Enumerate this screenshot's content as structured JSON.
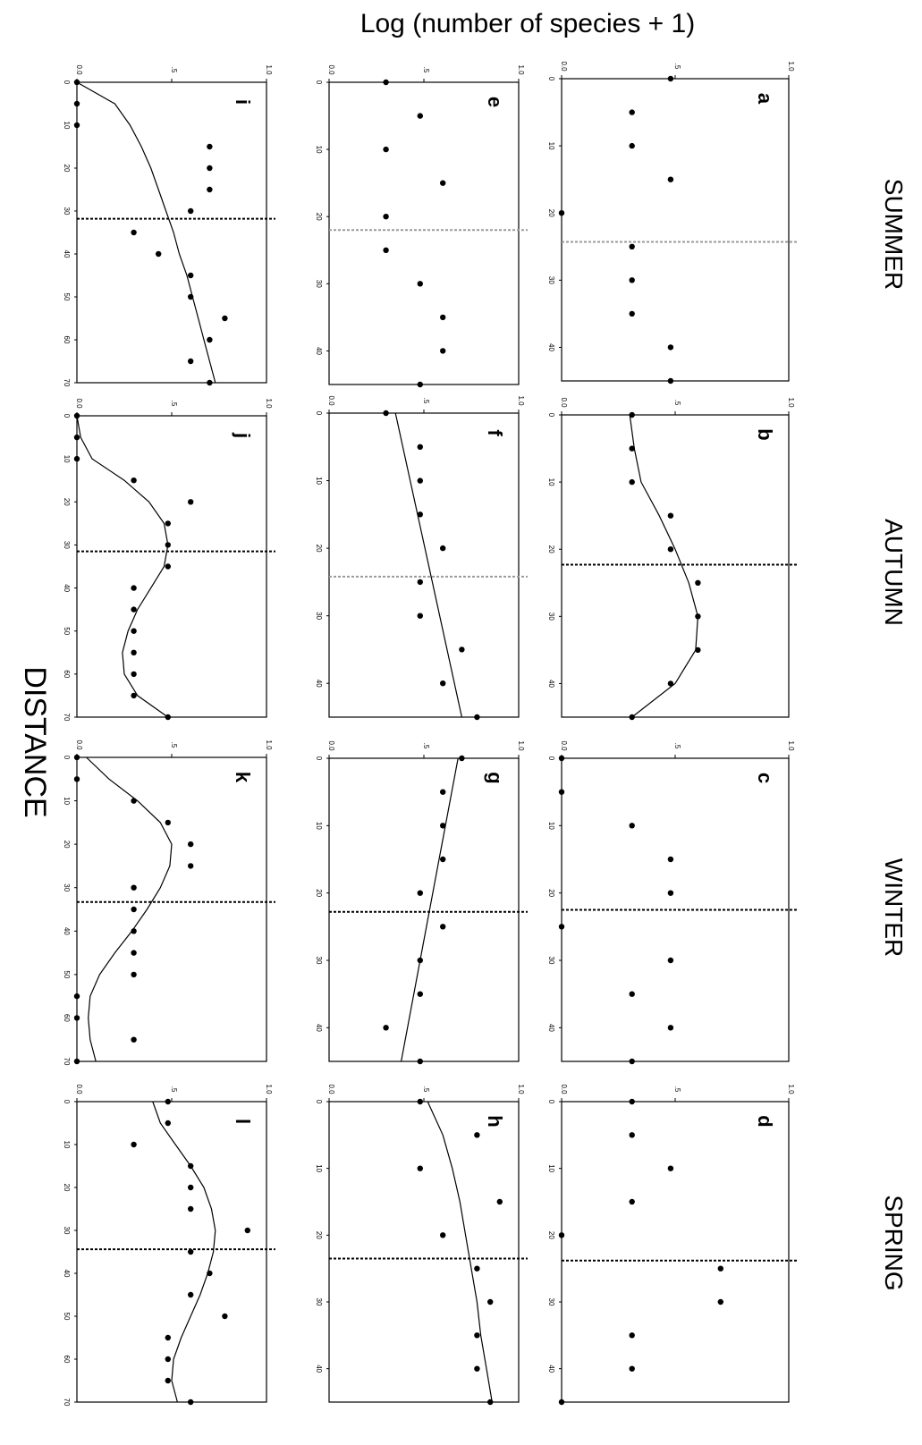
{
  "figure": {
    "ylabel": "Log (number of species + 1)",
    "xlabel": "DISTANCE",
    "seasons": [
      "SUMMER",
      "AUTUMN",
      "WINTER",
      "SPRING"
    ]
  },
  "chart_data": [
    {
      "type": "scatter",
      "panel": "a",
      "season": "SUMMER",
      "ylim": [
        0,
        1
      ],
      "yticks": [
        "0.0",
        ".5",
        "1.0"
      ],
      "xlim": [
        0,
        45
      ],
      "xticks": [
        "0",
        "10",
        "20",
        "30",
        "40"
      ],
      "threshold_x": 24.3,
      "threshold_style": "gray",
      "points": [
        [
          0,
          0.48
        ],
        [
          5,
          0.31
        ],
        [
          10,
          0.31
        ],
        [
          15,
          0.48
        ],
        [
          20,
          0
        ],
        [
          25,
          0.31
        ],
        [
          30,
          0.31
        ],
        [
          35,
          0.31
        ],
        [
          40,
          0.48
        ],
        [
          45,
          0.48
        ]
      ],
      "fit": []
    },
    {
      "type": "scatter",
      "panel": "b",
      "season": "AUTUMN",
      "ylim": [
        0,
        1
      ],
      "yticks": [
        "0.0",
        ".5",
        "1.0"
      ],
      "xlim": [
        0,
        45
      ],
      "xticks": [
        "0",
        "10",
        "20",
        "30",
        "40"
      ],
      "threshold_x": 22.3,
      "threshold_style": "black",
      "points": [
        [
          0,
          0.31
        ],
        [
          5,
          0.31
        ],
        [
          10,
          0.31
        ],
        [
          15,
          0.48
        ],
        [
          20,
          0.48
        ],
        [
          25,
          0.6
        ],
        [
          30,
          0.6
        ],
        [
          35,
          0.6
        ],
        [
          40,
          0.48
        ],
        [
          45,
          0.31
        ]
      ],
      "fit": [
        [
          0,
          0.3
        ],
        [
          5,
          0.32
        ],
        [
          10,
          0.35
        ],
        [
          15,
          0.43
        ],
        [
          20,
          0.5
        ],
        [
          25,
          0.56
        ],
        [
          30,
          0.6
        ],
        [
          35,
          0.59
        ],
        [
          40,
          0.5
        ],
        [
          45,
          0.31
        ]
      ]
    },
    {
      "type": "scatter",
      "panel": "c",
      "season": "WINTER",
      "ylim": [
        0,
        1
      ],
      "yticks": [
        "0.0",
        ".5",
        "1.0"
      ],
      "xlim": [
        0,
        45
      ],
      "xticks": [
        "0",
        "10",
        "20",
        "30",
        "40"
      ],
      "threshold_x": 22.5,
      "threshold_style": "black",
      "points": [
        [
          0,
          0
        ],
        [
          5,
          0
        ],
        [
          10,
          0.31
        ],
        [
          15,
          0.48
        ],
        [
          20,
          0.48
        ],
        [
          25,
          0
        ],
        [
          30,
          0.48
        ],
        [
          35,
          0.31
        ],
        [
          40,
          0.48
        ],
        [
          45,
          0.31
        ]
      ],
      "fit": []
    },
    {
      "type": "scatter",
      "panel": "d",
      "season": "SPRING",
      "ylim": [
        0,
        1
      ],
      "yticks": [
        "0.0",
        ".5",
        "1.0"
      ],
      "xlim": [
        0,
        45
      ],
      "xticks": [
        "0",
        "10",
        "20",
        "30",
        "40"
      ],
      "threshold_x": 23.8,
      "threshold_style": "black",
      "points": [
        [
          0,
          0.31
        ],
        [
          5,
          0.31
        ],
        [
          10,
          0.48
        ],
        [
          15,
          0.31
        ],
        [
          20,
          0
        ],
        [
          25,
          0.7
        ],
        [
          30,
          0.7
        ],
        [
          35,
          0.31
        ],
        [
          40,
          0.31
        ],
        [
          45,
          0
        ]
      ],
      "fit": []
    },
    {
      "type": "scatter",
      "panel": "e",
      "season": "SUMMER",
      "ylim": [
        0,
        1
      ],
      "yticks": [
        "0.0",
        ".5",
        "1.0"
      ],
      "xlim": [
        0,
        45
      ],
      "xticks": [
        "0",
        "10",
        "20",
        "30",
        "40"
      ],
      "threshold_x": 22,
      "threshold_style": "gray",
      "points": [
        [
          0,
          0.3
        ],
        [
          5,
          0.48
        ],
        [
          10,
          0.3
        ],
        [
          15,
          0.6
        ],
        [
          20,
          0.3
        ],
        [
          25,
          0.3
        ],
        [
          30,
          0.48
        ],
        [
          35,
          0.6
        ],
        [
          40,
          0.6
        ],
        [
          45,
          0.48
        ]
      ],
      "fit": []
    },
    {
      "type": "scatter",
      "panel": "f",
      "season": "AUTUMN",
      "ylim": [
        0,
        1
      ],
      "yticks": [
        "0.0",
        ".5",
        "1.0"
      ],
      "xlim": [
        0,
        45
      ],
      "xticks": [
        "0",
        "10",
        "20",
        "30",
        "40"
      ],
      "threshold_x": 24.2,
      "threshold_style": "gray",
      "points": [
        [
          0,
          0.3
        ],
        [
          5,
          0.48
        ],
        [
          10,
          0.48
        ],
        [
          15,
          0.48
        ],
        [
          20,
          0.6
        ],
        [
          25,
          0.48
        ],
        [
          30,
          0.48
        ],
        [
          35,
          0.7
        ],
        [
          40,
          0.6
        ],
        [
          45,
          0.78
        ]
      ],
      "fit": [
        [
          0,
          0.35
        ],
        [
          45,
          0.7
        ]
      ]
    },
    {
      "type": "scatter",
      "panel": "g",
      "season": "WINTER",
      "ylim": [
        0,
        1
      ],
      "yticks": [
        "0.0",
        ".5",
        "1.0"
      ],
      "xlim": [
        0,
        45
      ],
      "xticks": [
        "0",
        "10",
        "20",
        "30",
        "40"
      ],
      "threshold_x": 22.8,
      "threshold_style": "black",
      "points": [
        [
          0,
          0.7
        ],
        [
          5,
          0.6
        ],
        [
          10,
          0.6
        ],
        [
          15,
          0.6
        ],
        [
          20,
          0.48
        ],
        [
          25,
          0.6
        ],
        [
          30,
          0.48
        ],
        [
          35,
          0.48
        ],
        [
          40,
          0.3
        ],
        [
          45,
          0.48
        ]
      ],
      "fit": [
        [
          0,
          0.68
        ],
        [
          45,
          0.38
        ]
      ]
    },
    {
      "type": "scatter",
      "panel": "h",
      "season": "SPRING",
      "ylim": [
        0,
        1
      ],
      "yticks": [
        "0.0",
        ".5",
        "1.0"
      ],
      "xlim": [
        0,
        45
      ],
      "xticks": [
        "0",
        "10",
        "20",
        "30",
        "40"
      ],
      "threshold_x": 23.5,
      "threshold_style": "black",
      "points": [
        [
          0,
          0.48
        ],
        [
          5,
          0.78
        ],
        [
          10,
          0.48
        ],
        [
          15,
          0.9
        ],
        [
          20,
          0.6
        ],
        [
          25,
          0.78
        ],
        [
          30,
          0.85
        ],
        [
          35,
          0.78
        ],
        [
          40,
          0.78
        ],
        [
          45,
          0.85
        ]
      ],
      "fit": [
        [
          0,
          0.52
        ],
        [
          5,
          0.6
        ],
        [
          10,
          0.65
        ],
        [
          15,
          0.69
        ],
        [
          20,
          0.72
        ],
        [
          25,
          0.75
        ],
        [
          30,
          0.78
        ],
        [
          35,
          0.8
        ],
        [
          40,
          0.83
        ],
        [
          45,
          0.86
        ]
      ]
    },
    {
      "type": "scatter",
      "panel": "i",
      "season": "SUMMER",
      "ylim": [
        0,
        1
      ],
      "yticks": [
        "0.0",
        ".5",
        "1.0"
      ],
      "xlim": [
        0,
        70
      ],
      "xticks": [
        "0",
        "10",
        "20",
        "30",
        "40",
        "50",
        "60",
        "70"
      ],
      "threshold_x": 31.8,
      "threshold_style": "black",
      "points": [
        [
          0,
          0
        ],
        [
          5,
          0
        ],
        [
          10,
          0
        ],
        [
          15,
          0.7
        ],
        [
          20,
          0.7
        ],
        [
          25,
          0.7
        ],
        [
          30,
          0.6
        ],
        [
          35,
          0.3
        ],
        [
          40,
          0.43
        ],
        [
          45,
          0.6
        ],
        [
          50,
          0.6
        ],
        [
          55,
          0.78
        ],
        [
          60,
          0.7
        ],
        [
          65,
          0.6
        ],
        [
          70,
          0.7
        ]
      ],
      "fit": [
        [
          0,
          0
        ],
        [
          5,
          0.2
        ],
        [
          10,
          0.28
        ],
        [
          15,
          0.34
        ],
        [
          20,
          0.39
        ],
        [
          25,
          0.43
        ],
        [
          30,
          0.47
        ],
        [
          35,
          0.51
        ],
        [
          40,
          0.54
        ],
        [
          45,
          0.58
        ],
        [
          50,
          0.61
        ],
        [
          55,
          0.64
        ],
        [
          60,
          0.67
        ],
        [
          65,
          0.7
        ],
        [
          70,
          0.73
        ]
      ]
    },
    {
      "type": "scatter",
      "panel": "j",
      "season": "AUTUMN",
      "ylim": [
        0,
        1
      ],
      "yticks": [
        "0.0",
        ".5",
        "1.0"
      ],
      "xlim": [
        0,
        70
      ],
      "xticks": [
        "0",
        "10",
        "20",
        "30",
        "40",
        "50",
        "60",
        "70"
      ],
      "threshold_x": 31.5,
      "threshold_style": "black",
      "points": [
        [
          0,
          0
        ],
        [
          5,
          0
        ],
        [
          10,
          0
        ],
        [
          15,
          0.3
        ],
        [
          20,
          0.6
        ],
        [
          25,
          0.48
        ],
        [
          30,
          0.48
        ],
        [
          35,
          0.48
        ],
        [
          40,
          0.3
        ],
        [
          45,
          0.3
        ],
        [
          50,
          0.3
        ],
        [
          55,
          0.3
        ],
        [
          60,
          0.3
        ],
        [
          65,
          0.3
        ],
        [
          70,
          0.48
        ]
      ],
      "fit": [
        [
          0,
          0
        ],
        [
          5,
          0.02
        ],
        [
          10,
          0.08
        ],
        [
          15,
          0.25
        ],
        [
          20,
          0.38
        ],
        [
          25,
          0.46
        ],
        [
          30,
          0.48
        ],
        [
          35,
          0.46
        ],
        [
          40,
          0.39
        ],
        [
          45,
          0.32
        ],
        [
          50,
          0.27
        ],
        [
          55,
          0.24
        ],
        [
          60,
          0.25
        ],
        [
          65,
          0.32
        ],
        [
          70,
          0.48
        ]
      ]
    },
    {
      "type": "scatter",
      "panel": "k",
      "season": "WINTER",
      "ylim": [
        0,
        1
      ],
      "yticks": [
        "0.0",
        ".5",
        "1.0"
      ],
      "xlim": [
        0,
        70
      ],
      "xticks": [
        "0",
        "10",
        "20",
        "30",
        "40",
        "50",
        "60",
        "70"
      ],
      "threshold_x": 33.3,
      "threshold_style": "black",
      "points": [
        [
          0,
          0
        ],
        [
          5,
          0
        ],
        [
          10,
          0.3
        ],
        [
          15,
          0.48
        ],
        [
          20,
          0.6
        ],
        [
          25,
          0.6
        ],
        [
          30,
          0.3
        ],
        [
          35,
          0.3
        ],
        [
          40,
          0.3
        ],
        [
          45,
          0.3
        ],
        [
          50,
          0.3
        ],
        [
          55,
          0
        ],
        [
          60,
          0
        ],
        [
          65,
          0.3
        ],
        [
          70,
          0
        ]
      ],
      "fit": [
        [
          0,
          0.05
        ],
        [
          5,
          0.17
        ],
        [
          10,
          0.32
        ],
        [
          15,
          0.44
        ],
        [
          20,
          0.5
        ],
        [
          25,
          0.49
        ],
        [
          30,
          0.44
        ],
        [
          35,
          0.37
        ],
        [
          40,
          0.29
        ],
        [
          45,
          0.2
        ],
        [
          50,
          0.12
        ],
        [
          55,
          0.07
        ],
        [
          60,
          0.06
        ],
        [
          65,
          0.07
        ],
        [
          70,
          0.1
        ]
      ]
    },
    {
      "type": "scatter",
      "panel": "l",
      "season": "SPRING",
      "ylim": [
        0,
        1
      ],
      "yticks": [
        "0.0",
        ".5",
        "1.0"
      ],
      "xlim": [
        0,
        70
      ],
      "xticks": [
        "0",
        "10",
        "20",
        "30",
        "40",
        "50",
        "60",
        "70"
      ],
      "threshold_x": 34.4,
      "threshold_style": "black",
      "points": [
        [
          0,
          0.48
        ],
        [
          5,
          0.48
        ],
        [
          10,
          0.3
        ],
        [
          15,
          0.6
        ],
        [
          20,
          0.6
        ],
        [
          25,
          0.6
        ],
        [
          30,
          0.9
        ],
        [
          35,
          0.6
        ],
        [
          40,
          0.7
        ],
        [
          45,
          0.6
        ],
        [
          50,
          0.78
        ],
        [
          55,
          0.48
        ],
        [
          60,
          0.48
        ],
        [
          65,
          0.48
        ],
        [
          70,
          0.6
        ]
      ],
      "fit": [
        [
          0,
          0.4
        ],
        [
          5,
          0.44
        ],
        [
          10,
          0.52
        ],
        [
          15,
          0.6
        ],
        [
          20,
          0.67
        ],
        [
          25,
          0.71
        ],
        [
          30,
          0.73
        ],
        [
          35,
          0.72
        ],
        [
          40,
          0.69
        ],
        [
          45,
          0.65
        ],
        [
          50,
          0.6
        ],
        [
          55,
          0.55
        ],
        [
          60,
          0.51
        ],
        [
          65,
          0.5
        ],
        [
          70,
          0.53
        ]
      ]
    }
  ]
}
